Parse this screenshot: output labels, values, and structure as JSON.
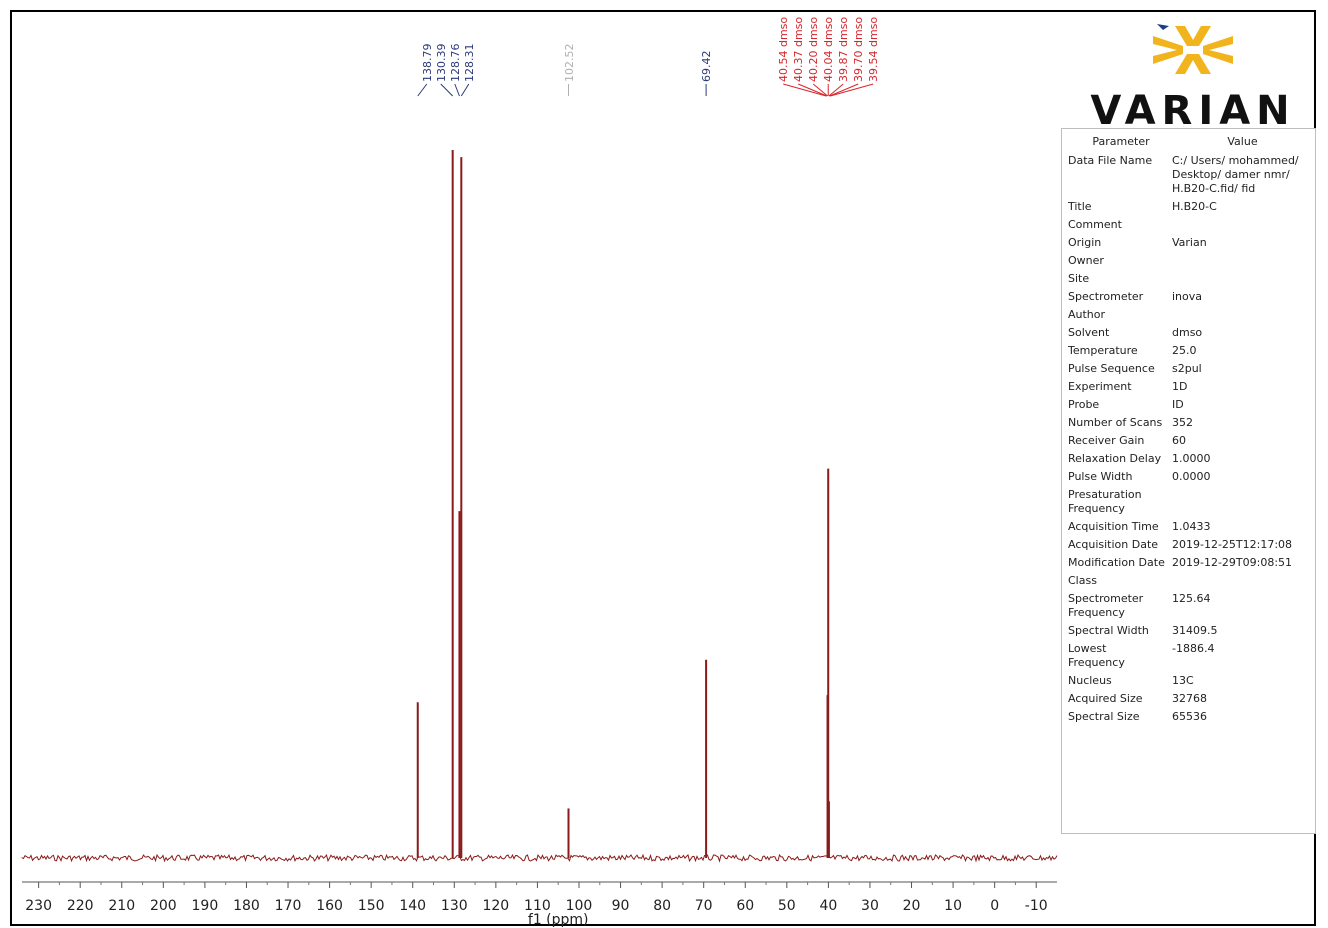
{
  "chart_data": {
    "type": "line",
    "xlabel": "f1 (ppm)",
    "xlim": [
      234,
      -15
    ],
    "x_ticks": [
      230,
      220,
      210,
      200,
      190,
      180,
      170,
      160,
      150,
      140,
      130,
      120,
      110,
      100,
      90,
      80,
      70,
      60,
      50,
      40,
      30,
      20,
      10,
      0,
      -10
    ],
    "x_tick_labels": [
      "230",
      "220",
      "210",
      "200",
      "190",
      "180",
      "170",
      "160",
      "150",
      "140",
      "130",
      "120",
      "110",
      "100",
      "90",
      "80",
      "70",
      "60",
      "50",
      "40",
      "30",
      "20",
      "10",
      "0",
      "-10"
    ],
    "peaks": [
      {
        "x": 138.79,
        "height": 0.22
      },
      {
        "x": 130.39,
        "height": 1.0
      },
      {
        "x": 128.76,
        "height": 0.49
      },
      {
        "x": 128.31,
        "height": 0.99
      },
      {
        "x": 102.52,
        "height": 0.07
      },
      {
        "x": 69.42,
        "height": 0.28
      },
      {
        "x": 40.04,
        "height": 0.55
      },
      {
        "x": 40.2,
        "height": 0.23
      },
      {
        "x": 39.87,
        "height": 0.08
      }
    ],
    "peak_labels_group1": {
      "color": "#2b3a7a",
      "labels": [
        "138.79",
        "130.39",
        "128.76",
        "128.31"
      ],
      "positions": [
        138.79,
        130.39,
        128.76,
        128.31
      ]
    },
    "peak_labels_group2": {
      "color": "#b0b0b0",
      "labels": [
        "102.52"
      ],
      "positions": [
        102.52
      ]
    },
    "peak_labels_group3": {
      "color": "#2b3a7a",
      "labels": [
        "69.42"
      ],
      "positions": [
        69.42
      ]
    },
    "peak_labels_solvent": {
      "color": "#d8262c",
      "labels": [
        "40.54 dmso",
        "40.37 dmso",
        "40.20 dmso",
        "40.04 dmso",
        "39.87 dmso",
        "39.70 dmso",
        "39.54 dmso"
      ],
      "positions": [
        40.54,
        40.37,
        40.2,
        40.04,
        39.87,
        39.7,
        39.54
      ]
    },
    "line_color": "#8b1a1a",
    "grid": false
  },
  "logo": {
    "text": "VARIAN",
    "colors": [
      "#f2b41c",
      "#1c3c8c"
    ]
  },
  "parameters": {
    "header_param": "Parameter",
    "header_value": "Value",
    "rows": [
      {
        "name": "Data File Name",
        "value": "C:/ Users/ mohammed/\nDesktop/ damer nmr/\nH.B20-C.fid/ fid"
      },
      {
        "name": "Title",
        "value": "H.B20-C"
      },
      {
        "name": "Comment",
        "value": ""
      },
      {
        "name": "Origin",
        "value": "Varian"
      },
      {
        "name": "Owner",
        "value": ""
      },
      {
        "name": "Site",
        "value": ""
      },
      {
        "name": "Spectrometer",
        "value": "inova"
      },
      {
        "name": "Author",
        "value": ""
      },
      {
        "name": "Solvent",
        "value": "dmso"
      },
      {
        "name": "Temperature",
        "value": "25.0"
      },
      {
        "name": "Pulse Sequence",
        "value": "s2pul"
      },
      {
        "name": "Experiment",
        "value": "1D"
      },
      {
        "name": "Probe",
        "value": "ID"
      },
      {
        "name": "Number of Scans",
        "value": "352"
      },
      {
        "name": "Receiver Gain",
        "value": "60"
      },
      {
        "name": "Relaxation Delay",
        "value": "1.0000"
      },
      {
        "name": "Pulse Width",
        "value": "0.0000"
      },
      {
        "name": "Presaturation\nFrequency",
        "value": ""
      },
      {
        "name": "Acquisition Time",
        "value": "1.0433"
      },
      {
        "name": "Acquisition Date",
        "value": "2019-12-25T12:17:08"
      },
      {
        "name": "Modification Date",
        "value": "2019-12-29T09:08:51"
      },
      {
        "name": "Class",
        "value": ""
      },
      {
        "name": "Spectrometer\nFrequency",
        "value": "125.64"
      },
      {
        "name": "Spectral Width",
        "value": "31409.5"
      },
      {
        "name": "Lowest\nFrequency",
        "value": "-1886.4"
      },
      {
        "name": "Nucleus",
        "value": "13C"
      },
      {
        "name": "Acquired Size",
        "value": "32768"
      },
      {
        "name": "Spectral Size",
        "value": "65536"
      }
    ]
  }
}
